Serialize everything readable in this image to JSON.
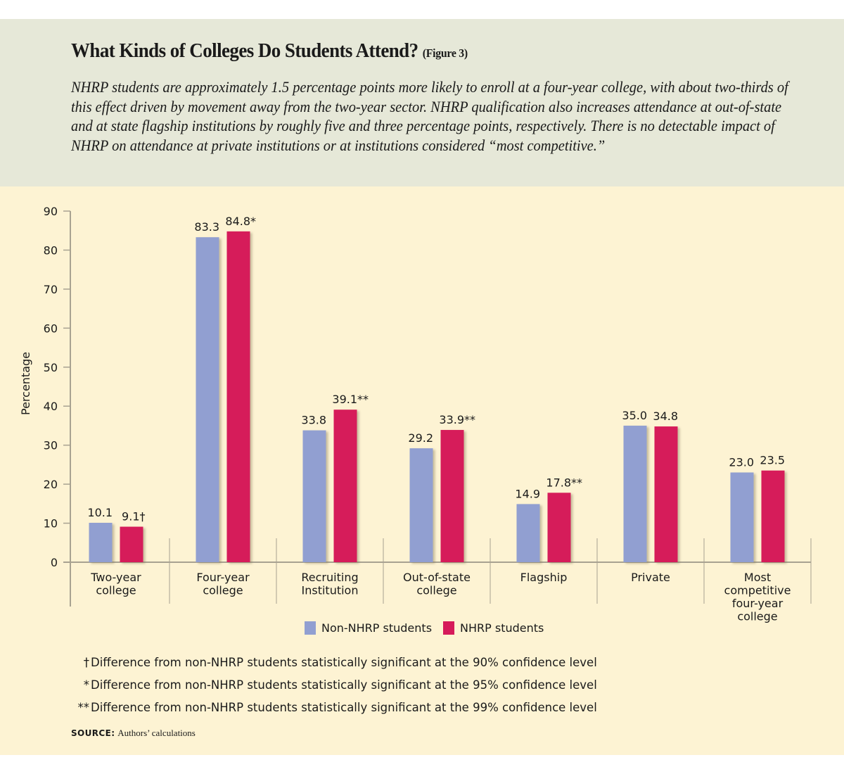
{
  "header": {
    "title": "What Kinds of Colleges Do Students Attend?",
    "figure_label": "(Figure 3)",
    "subtitle": "NHRP students are approximately 1.5 percentage points more likely to enroll at a four-year college, with about two-thirds of this effect driven by movement away from the two-year sector. NHRP qualification also increases attendance at out-of-state and at state flagship institutions by roughly five and three percentage points, respectively. There is no detectable impact of NHRP on attendance at private institutions or at institutions considered “most competitive.”"
  },
  "colors": {
    "header_bg": "#e6e8d8",
    "panel_bg": "#fdf3d3",
    "non_nhrp": "#919fd1",
    "nhrp": "#d61a5a",
    "axis": "#a8a291"
  },
  "chart_data": {
    "type": "bar",
    "title": "What Kinds of Colleges Do Students Attend?",
    "xlabel": "",
    "ylabel": "Percentage",
    "ylim": [
      0,
      90
    ],
    "yticks": [
      0,
      10,
      20,
      30,
      40,
      50,
      60,
      70,
      80,
      90
    ],
    "grid": false,
    "legend_position": "bottom-center",
    "categories": [
      [
        "Two-year",
        "college"
      ],
      [
        "Four-year",
        "college"
      ],
      [
        "Recruiting",
        "Institution"
      ],
      [
        "Out-of-state",
        "college"
      ],
      [
        "Flagship"
      ],
      [
        "Private"
      ],
      [
        "Most",
        "competitive",
        "four-year",
        "college"
      ]
    ],
    "series": [
      {
        "name": "Non-NHRP students",
        "color": "#919fd1",
        "values": [
          10.1,
          83.3,
          33.8,
          29.2,
          14.9,
          35.0,
          23.0
        ],
        "labels": [
          "10.1",
          "83.3",
          "33.8",
          "29.2",
          "14.9",
          "35.0",
          "23.0"
        ]
      },
      {
        "name": "NHRP students",
        "color": "#d61a5a",
        "values": [
          9.1,
          84.8,
          39.1,
          33.9,
          17.8,
          34.8,
          23.5
        ],
        "labels": [
          "9.1†",
          "84.8*",
          "39.1**",
          "33.9**",
          "17.8**",
          "34.8",
          "23.5"
        ]
      }
    ]
  },
  "legend": [
    {
      "label": "Non-NHRP students",
      "color": "#919fd1"
    },
    {
      "label": "NHRP students",
      "color": "#d61a5a"
    }
  ],
  "footnotes": [
    {
      "mark": "†",
      "text": "Difference from non-NHRP students statistically significant at the 90% confidence level"
    },
    {
      "mark": "*",
      "text": "Difference from non-NHRP students statistically significant at the 95% confidence level"
    },
    {
      "mark": "**",
      "text": "Difference from non-NHRP students statistically significant at the 99% confidence level"
    }
  ],
  "source": {
    "label": "SOURCE:",
    "text": "Authors’ calculations"
  }
}
